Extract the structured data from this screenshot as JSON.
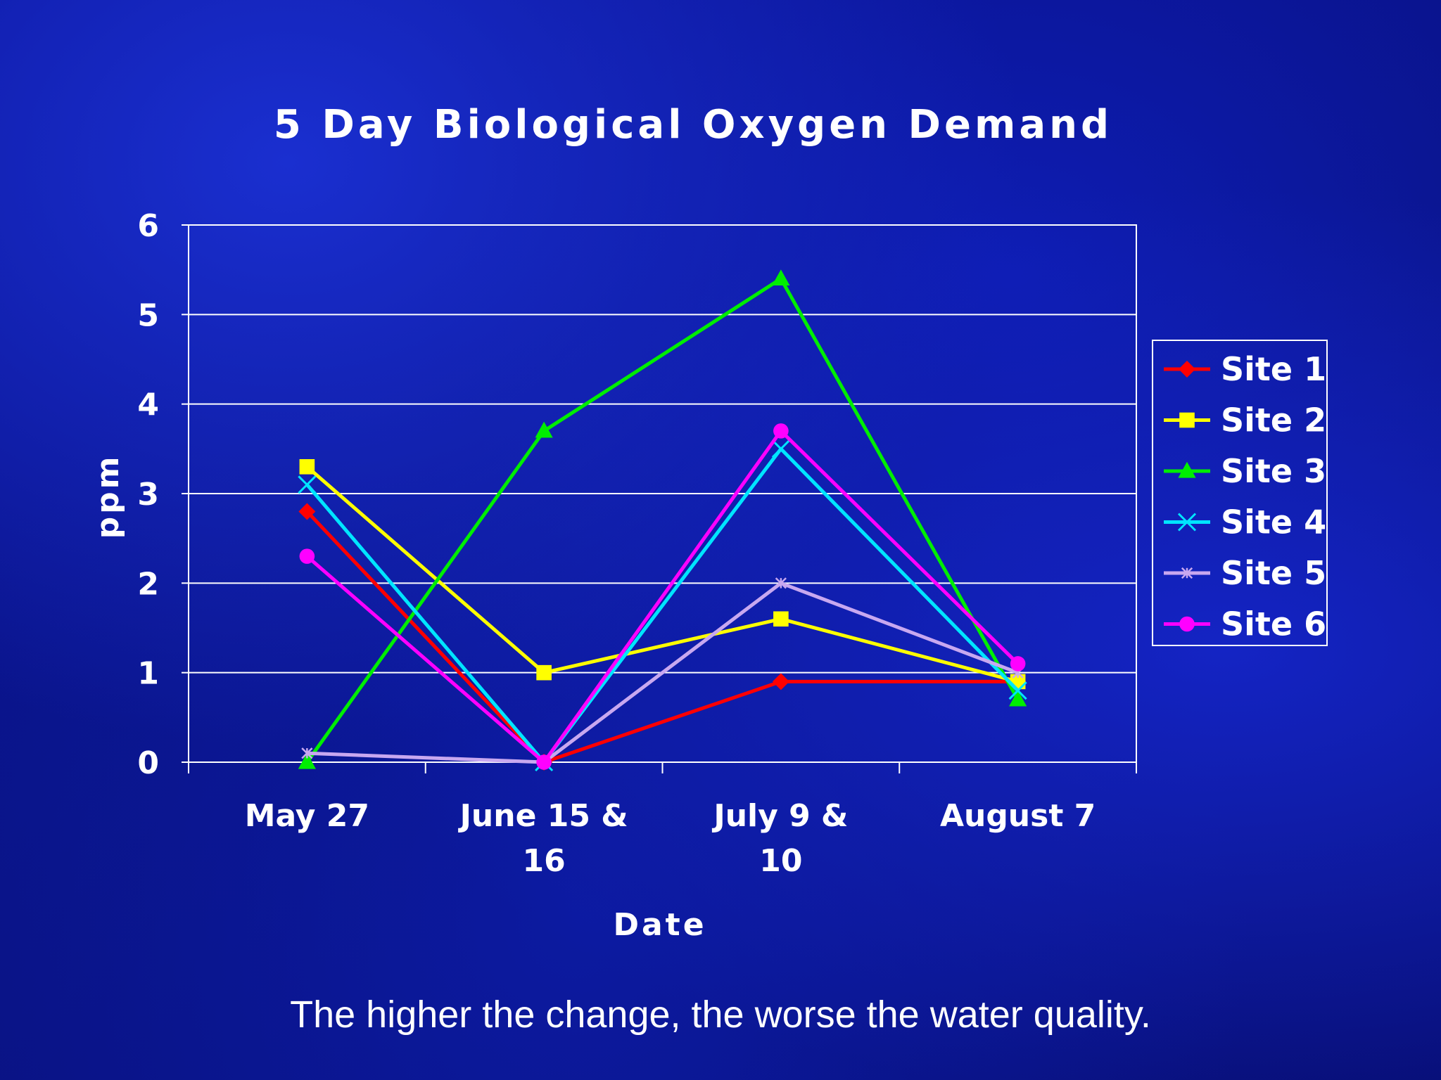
{
  "caption": "The higher the change, the worse the water quality.",
  "chart_data": {
    "type": "line",
    "title": "5 Day Biological Oxygen Demand",
    "xlabel": "Date",
    "ylabel": "ppm",
    "categories": [
      "May 27",
      "June 15 & 16",
      "July 9 & 10",
      "August 7"
    ],
    "ylim": [
      0,
      6
    ],
    "yticks": [
      0,
      1,
      2,
      3,
      4,
      5,
      6
    ],
    "grid": true,
    "legend": "right",
    "series": [
      {
        "name": "Site 1",
        "values": [
          2.8,
          0,
          0.9,
          0.9
        ],
        "color": "#ff0000",
        "marker": "diamond"
      },
      {
        "name": "Site 2",
        "values": [
          3.3,
          1.0,
          1.6,
          0.9
        ],
        "color": "#ffff00",
        "marker": "square"
      },
      {
        "name": "Site 3",
        "values": [
          0,
          3.7,
          5.4,
          0.7
        ],
        "color": "#00ee00",
        "marker": "triangle"
      },
      {
        "name": "Site 4",
        "values": [
          3.1,
          0,
          3.5,
          0.8
        ],
        "color": "#00e5ff",
        "marker": "x"
      },
      {
        "name": "Site 5",
        "values": [
          0.1,
          0,
          2.0,
          1.0
        ],
        "color": "#c8a8f0",
        "marker": "star"
      },
      {
        "name": "Site 6",
        "values": [
          2.3,
          0,
          3.7,
          1.1
        ],
        "color": "#ff00ff",
        "marker": "circle"
      }
    ]
  }
}
